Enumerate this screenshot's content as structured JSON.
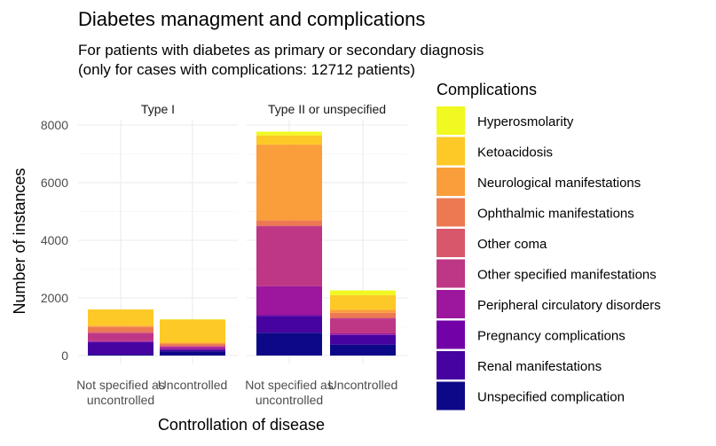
{
  "chart_data": {
    "type": "bar",
    "stacked": true,
    "title": "Diabetes managment and complications",
    "subtitle_lines": [
      "For patients with diabetes as primary or secondary diagnosis",
      "(only for cases with complications: 12712 patients)"
    ],
    "xlabel": "Controllation of disease",
    "ylabel": "Number of instances",
    "ylim": [
      0,
      8000
    ],
    "yticks": [
      "0",
      "2000",
      "4000",
      "6000",
      "8000"
    ],
    "grid": true,
    "legend_title": "Complications",
    "legend_position": "right",
    "facets": [
      "Type I",
      "Type II or unspecified"
    ],
    "categories": [
      "Not specified as uncontrolled",
      "Uncontrolled"
    ],
    "category_labels": [
      [
        "Not specified as",
        "uncontrolled"
      ],
      [
        "Uncontrolled"
      ]
    ],
    "series": [
      {
        "name": "Unspecified complication",
        "color": "#0D0887",
        "values": {
          "Type I": [
            30,
            150
          ],
          "Type II or unspecified": [
            790,
            380
          ]
        }
      },
      {
        "name": "Renal manifestations",
        "color": "#46039F",
        "values": {
          "Type I": [
            430,
            60
          ],
          "Type II or unspecified": [
            590,
            330
          ]
        }
      },
      {
        "name": "Pregnancy complications",
        "color": "#7201A8",
        "values": {
          "Type I": [
            20,
            10
          ],
          "Type II or unspecified": [
            20,
            20
          ]
        }
      },
      {
        "name": "Peripheral circulatory disorders",
        "color": "#9C179E",
        "values": {
          "Type I": [
            20,
            60
          ],
          "Type II or unspecified": [
            1010,
            40
          ]
        }
      },
      {
        "name": "Other specified manifestations",
        "color": "#BD3786",
        "values": {
          "Type I": [
            280,
            50
          ],
          "Type II or unspecified": [
            2080,
            520
          ]
        }
      },
      {
        "name": "Other coma",
        "color": "#D8576B",
        "values": {
          "Type I": [
            40,
            10
          ],
          "Type II or unspecified": [
            20,
            30
          ]
        }
      },
      {
        "name": "Ophthalmic manifestations",
        "color": "#ED7953",
        "values": {
          "Type I": [
            170,
            60
          ],
          "Type II or unspecified": [
            180,
            160
          ]
        }
      },
      {
        "name": "Neurological manifestations",
        "color": "#FA9E3B",
        "values": {
          "Type I": [
            50,
            50
          ],
          "Type II or unspecified": [
            2630,
            110
          ]
        }
      },
      {
        "name": "Ketoacidosis",
        "color": "#FDC926",
        "values": {
          "Type I": [
            560,
            800
          ],
          "Type II or unspecified": [
            320,
            510
          ]
        }
      },
      {
        "name": "Hyperosmolarity",
        "color": "#F0F921",
        "values": {
          "Type I": [
            0,
            10
          ],
          "Type II or unspecified": [
            130,
            160
          ]
        }
      }
    ]
  }
}
